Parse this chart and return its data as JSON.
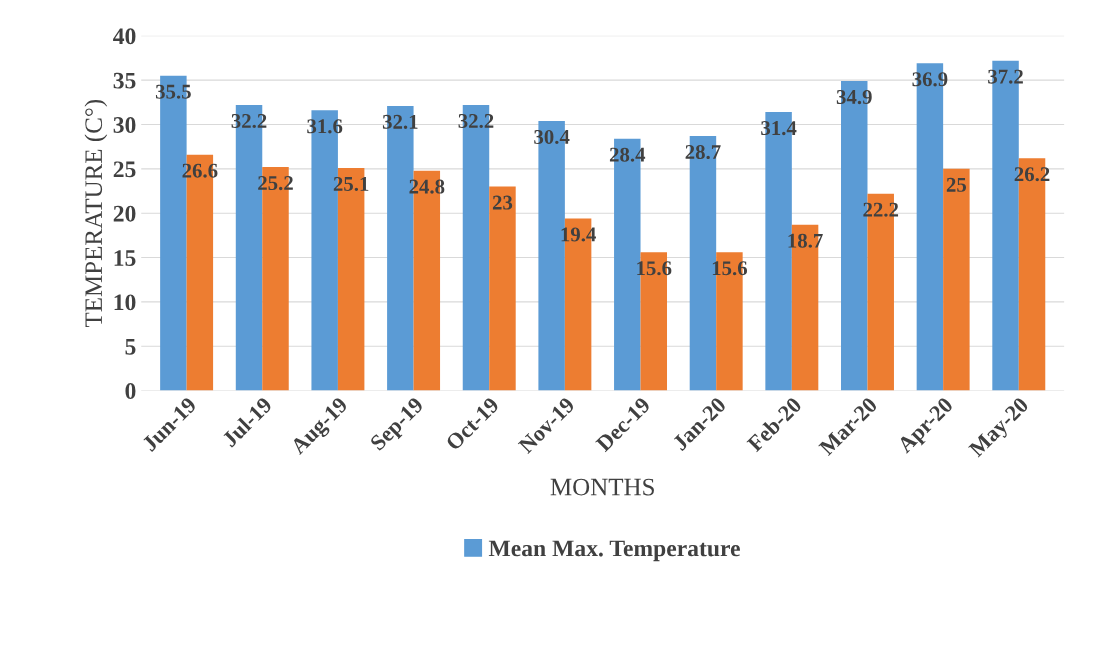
{
  "chart_data": {
    "type": "bar",
    "xlabel": "MONTHS",
    "ylabel": "TEMPERATURE (C°)",
    "categories": [
      "Jun-19",
      "Jul-19",
      "Aug-19",
      "Sep-19",
      "Oct-19",
      "Nov-19",
      "Dec-19",
      "Jan-20",
      "Feb-20",
      "Mar-20",
      "Apr-20",
      "May-20"
    ],
    "series": [
      {
        "name": "Mean Max. Temperature",
        "color": "#5b9bd5",
        "values": [
          35.5,
          32.2,
          31.6,
          32.1,
          32.2,
          30.4,
          28.4,
          28.7,
          31.4,
          34.9,
          36.9,
          37.2
        ]
      },
      {
        "color": "#ed7d31",
        "values": [
          26.6,
          25.2,
          25.1,
          24.8,
          23,
          19.4,
          15.6,
          15.6,
          18.7,
          22.2,
          25,
          26.2
        ]
      }
    ],
    "ylim": [
      0,
      40
    ],
    "yticks": [
      0,
      5,
      10,
      15,
      20,
      25,
      30,
      35,
      40
    ],
    "grid": "y",
    "legend": "bottom",
    "data_labels": true
  }
}
